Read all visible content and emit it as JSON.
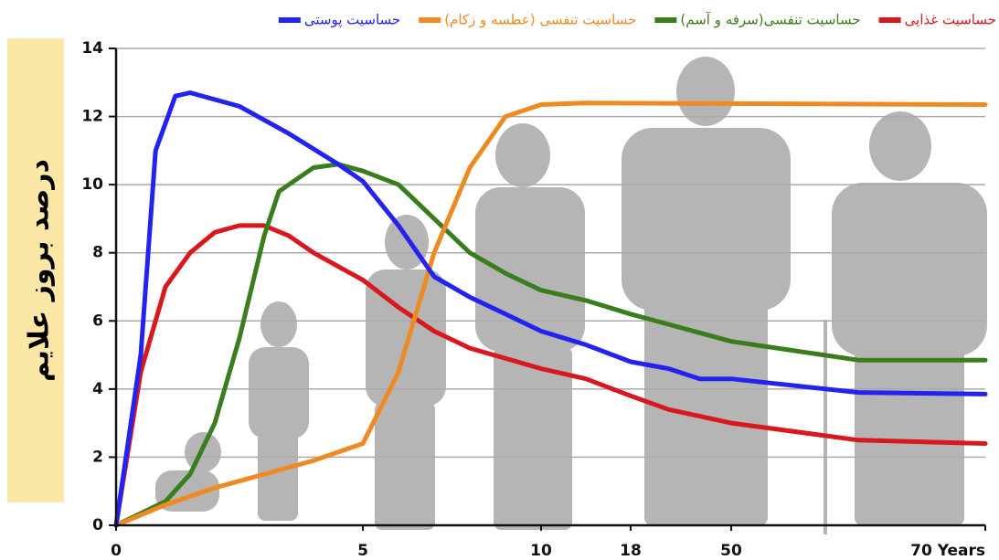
{
  "chart_data": {
    "type": "line",
    "y_label": "درصد بروز علایم",
    "ylim": [
      0,
      14
    ],
    "yticks": [
      0,
      2,
      4,
      6,
      8,
      10,
      12,
      14
    ],
    "grid": true,
    "xlim": [
      0,
      70
    ],
    "xticks": [
      0,
      5,
      10,
      18,
      50,
      {
        "value": 70,
        "label": "70 Years"
      }
    ],
    "legend": "top",
    "series": [
      {
        "name": "حساسیت غذایی",
        "color": "#d7191f",
        "x": [
          0,
          0.5,
          1,
          1.5,
          2,
          2.5,
          3,
          3.5,
          4,
          5,
          6,
          7,
          8,
          10,
          14,
          18,
          30,
          50,
          60,
          70
        ],
        "values": [
          0,
          4.5,
          7,
          8,
          8.6,
          8.8,
          8.8,
          8.5,
          8,
          7.2,
          6.4,
          5.7,
          5.2,
          4.6,
          4.3,
          3.8,
          3.4,
          3,
          2.5,
          2.4
        ]
      },
      {
        "name": "حساسیت تنفسی(سرفه و آسم)",
        "color": "#3a7d1e",
        "x": [
          0,
          1,
          1.5,
          2,
          2.5,
          3,
          3.3,
          4,
          4.5,
          5,
          6,
          7,
          8,
          9,
          10,
          14,
          18,
          30,
          50,
          60,
          70
        ],
        "values": [
          0,
          0.7,
          1.5,
          3,
          5.5,
          8.5,
          9.8,
          10.5,
          10.6,
          10.4,
          10,
          9,
          8,
          7.4,
          6.9,
          6.6,
          6.2,
          5.9,
          5.4,
          4.85,
          4.85
        ]
      },
      {
        "name": "حساسیت تنفسی (عطسه و زکام)",
        "color": "#ee8a22",
        "x": [
          0,
          1,
          2,
          3,
          4,
          5,
          6,
          7,
          8,
          9,
          10,
          14,
          70
        ],
        "values": [
          0,
          0.6,
          1.1,
          1.5,
          1.9,
          2.4,
          4.5,
          8,
          10.5,
          12,
          12.35,
          12.4,
          12.35
        ]
      },
      {
        "name": "حساسیت پوستی",
        "color": "#2323f0",
        "x": [
          0,
          0.5,
          0.8,
          1.2,
          1.5,
          2.5,
          3.5,
          4.5,
          5,
          6,
          7,
          8,
          9,
          10,
          14,
          18,
          30,
          40,
          50,
          60,
          70
        ],
        "values": [
          0,
          5,
          11,
          12.6,
          12.7,
          12.3,
          11.5,
          10.6,
          10.1,
          8.8,
          7.3,
          6.7,
          6.2,
          5.7,
          5.3,
          4.8,
          4.6,
          4.3,
          4.3,
          3.9,
          3.85
        ]
      }
    ]
  }
}
